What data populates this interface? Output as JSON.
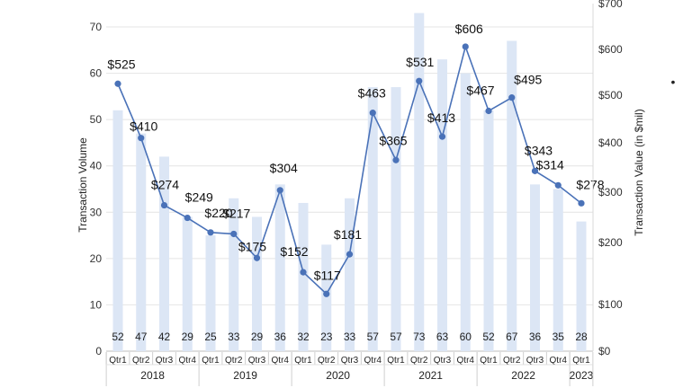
{
  "chart_data": {
    "type": "bar+line",
    "categories": [
      "Qtr1",
      "Qtr2",
      "Qtr3",
      "Qtr4",
      "Qtr1",
      "Qtr2",
      "Qtr3",
      "Qtr4",
      "Qtr1",
      "Qtr2",
      "Qtr3",
      "Qtr4",
      "Qtr1",
      "Qtr2",
      "Qtr3",
      "Qtr4",
      "Qtr1",
      "Qtr2",
      "Qtr3",
      "Qtr4",
      "Qtr1"
    ],
    "years": [
      {
        "label": "2018",
        "count": 4
      },
      {
        "label": "2019",
        "count": 4
      },
      {
        "label": "2020",
        "count": 4
      },
      {
        "label": "2021",
        "count": 4
      },
      {
        "label": "2022",
        "count": 4
      },
      {
        "label": "2023",
        "count": 1
      }
    ],
    "series": [
      {
        "type": "bar",
        "axis": "left",
        "values": [
          52,
          47,
          42,
          29,
          25,
          33,
          29,
          36,
          32,
          23,
          33,
          57,
          57,
          73,
          63,
          60,
          52,
          67,
          36,
          35,
          28
        ],
        "labels": [
          "52",
          "47",
          "42",
          "29",
          "25",
          "33",
          "29",
          "36",
          "32",
          "23",
          "33",
          "57",
          "57",
          "73",
          "63",
          "60",
          "52",
          "67",
          "36",
          "35",
          "28"
        ],
        "color": "#dce6f5"
      },
      {
        "type": "line",
        "axis": "right",
        "values": [
          525,
          410,
          274,
          249,
          220,
          217,
          175,
          304,
          152,
          117,
          181,
          463,
          365,
          531,
          413,
          606,
          467,
          495,
          343,
          314,
          278
        ],
        "labels": [
          "$525",
          "$410",
          "$274",
          "$249",
          "$220",
          "$217",
          "$175",
          "$304",
          "$152",
          "$117",
          "$181",
          "$463",
          "$365",
          "$531",
          "$413",
          "$606",
          "$467",
          "$495",
          "$343",
          "$314",
          "$278"
        ],
        "color": "#4a72b8"
      }
    ],
    "ylabel_left": "Transaction Volume",
    "ylabel_right": "Transaction Value (in $mil)",
    "ylim_left": [
      0,
      70
    ],
    "yticks_left": [
      "0",
      "10",
      "20",
      "30",
      "40",
      "50",
      "60",
      "70"
    ],
    "right_ticks": [
      {
        "value": 0,
        "label": "$0"
      },
      {
        "value": 100,
        "label": "$100"
      },
      {
        "value": 200,
        "label": "$200"
      },
      {
        "value": 300,
        "label": "$300"
      },
      {
        "value": 400,
        "label": "$400"
      },
      {
        "value": 500,
        "label": "$500"
      },
      {
        "value": 600,
        "label": "$600"
      },
      {
        "value": 700,
        "label": "$700"
      }
    ],
    "grid": true,
    "legend": "none",
    "side_marker": "•"
  }
}
